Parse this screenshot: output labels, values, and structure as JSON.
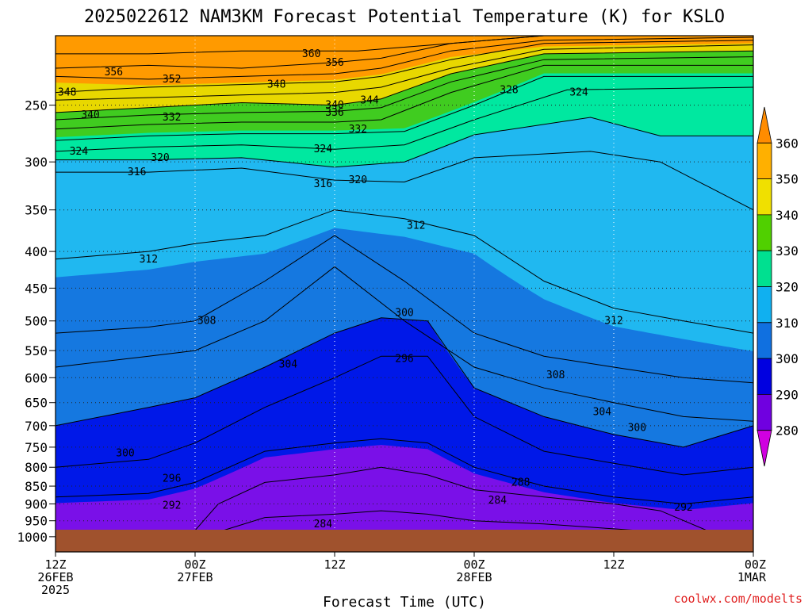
{
  "chart_data": {
    "type": "heatmap",
    "title": "2025022612 NAM3KM Forecast Potential Temperature (K) for KSLO",
    "xlabel": "Forecast Time (UTC)",
    "ylabel": "",
    "y_ticks": [
      250,
      300,
      350,
      400,
      450,
      500,
      550,
      600,
      650,
      700,
      750,
      800,
      850,
      900,
      950,
      1000
    ],
    "y_range": [
      200,
      1050
    ],
    "y_scale": "log",
    "x_ticks": [
      {
        "hour": 0,
        "lines": [
          "12Z",
          "26FEB",
          "2025"
        ]
      },
      {
        "hour": 12,
        "lines": [
          "00Z",
          "27FEB"
        ]
      },
      {
        "hour": 24,
        "lines": [
          "12Z"
        ]
      },
      {
        "hour": 36,
        "lines": [
          "00Z",
          "28FEB"
        ]
      },
      {
        "hour": 48,
        "lines": [
          "12Z"
        ]
      },
      {
        "hour": 60,
        "lines": [
          "00Z",
          "1MAR"
        ]
      }
    ],
    "x_range": [
      0,
      60
    ],
    "grid": true,
    "colorbar": {
      "ticks": [
        360,
        350,
        340,
        330,
        320,
        310,
        300,
        290,
        280
      ],
      "colors": [
        "#ff8c00",
        "#ffb000",
        "#f0e000",
        "#50d000",
        "#00e090",
        "#10b0f0",
        "#1070e0",
        "#0000e0",
        "#7000e0",
        "#d000e0"
      ]
    },
    "fill_colors": {
      "above_350": "#ff9a00",
      "340_350": "#e8d800",
      "330_340": "#40cc20",
      "320_330": "#00e8a0",
      "310_320": "#20b8f0",
      "300_310": "#1578e0",
      "290_300": "#0018e8",
      "280_290": "#7a10e8",
      "below_280": "#e010e8",
      "ground": "#a0522d"
    },
    "isentropes": [
      {
        "theta": 360,
        "p": [
          [
            0,
            212
          ],
          [
            8,
            212
          ],
          [
            16,
            210
          ],
          [
            26,
            210
          ],
          [
            34,
            205
          ],
          [
            42,
            200
          ],
          [
            60,
            200
          ]
        ]
      },
      {
        "theta": 356,
        "p": [
          [
            0,
            222
          ],
          [
            8,
            220
          ],
          [
            16,
            222
          ],
          [
            24,
            218
          ],
          [
            28,
            215
          ],
          [
            34,
            205
          ],
          [
            42,
            200
          ],
          [
            60,
            200
          ]
        ]
      },
      {
        "theta": 352,
        "p": [
          [
            0,
            228
          ],
          [
            8,
            230
          ],
          [
            16,
            228
          ],
          [
            24,
            226
          ],
          [
            28,
            222
          ],
          [
            34,
            210
          ],
          [
            42,
            203
          ],
          [
            60,
            201
          ]
        ]
      },
      {
        "theta": 348,
        "p": [
          [
            0,
            240
          ],
          [
            8,
            236
          ],
          [
            16,
            234
          ],
          [
            24,
            232
          ],
          [
            28,
            228
          ],
          [
            34,
            216
          ],
          [
            42,
            205
          ],
          [
            60,
            203
          ]
        ]
      },
      {
        "theta": 344,
        "p": [
          [
            0,
            246
          ],
          [
            8,
            244
          ],
          [
            16,
            242
          ],
          [
            24,
            240
          ],
          [
            28,
            236
          ],
          [
            34,
            222
          ],
          [
            42,
            209
          ],
          [
            60,
            206
          ]
        ]
      },
      {
        "theta": 340,
        "p": [
          [
            0,
            256
          ],
          [
            8,
            252
          ],
          [
            16,
            248
          ],
          [
            24,
            250
          ],
          [
            28,
            245
          ],
          [
            34,
            226
          ],
          [
            42,
            212
          ],
          [
            60,
            210
          ]
        ]
      },
      {
        "theta": 336,
        "p": [
          [
            0,
            262
          ],
          [
            8,
            258
          ],
          [
            16,
            256
          ],
          [
            24,
            255
          ],
          [
            28,
            252
          ],
          [
            34,
            232
          ],
          [
            42,
            216
          ],
          [
            60,
            214
          ]
        ]
      },
      {
        "theta": 332,
        "p": [
          [
            0,
            270
          ],
          [
            8,
            266
          ],
          [
            16,
            264
          ],
          [
            24,
            264
          ],
          [
            28,
            262
          ],
          [
            34,
            240
          ],
          [
            42,
            220
          ],
          [
            60,
            220
          ]
        ]
      },
      {
        "theta": 328,
        "p": [
          [
            0,
            280
          ],
          [
            8,
            276
          ],
          [
            16,
            274
          ],
          [
            24,
            274
          ],
          [
            30,
            272
          ],
          [
            36,
            250
          ],
          [
            42,
            228
          ],
          [
            60,
            228
          ]
        ]
      },
      {
        "theta": 324,
        "p": [
          [
            0,
            290
          ],
          [
            8,
            286
          ],
          [
            16,
            284
          ],
          [
            24,
            288
          ],
          [
            30,
            284
          ],
          [
            36,
            262
          ],
          [
            44,
            238
          ],
          [
            60,
            236
          ]
        ]
      },
      {
        "theta": 320,
        "p": [
          [
            0,
            298
          ],
          [
            8,
            298
          ],
          [
            16,
            296
          ],
          [
            24,
            305
          ],
          [
            30,
            300
          ],
          [
            36,
            275
          ],
          [
            46,
            260
          ],
          [
            52,
            276
          ],
          [
            60,
            276
          ]
        ]
      },
      {
        "theta": 316,
        "p": [
          [
            0,
            310
          ],
          [
            8,
            310
          ],
          [
            16,
            306
          ],
          [
            24,
            318
          ],
          [
            30,
            320
          ],
          [
            36,
            296
          ],
          [
            46,
            290
          ],
          [
            52,
            300
          ],
          [
            60,
            350
          ]
        ]
      },
      {
        "theta": 312,
        "p": [
          [
            0,
            410
          ],
          [
            8,
            400
          ],
          [
            12,
            390
          ],
          [
            18,
            380
          ],
          [
            24,
            350
          ],
          [
            30,
            360
          ],
          [
            36,
            380
          ],
          [
            42,
            440
          ],
          [
            48,
            480
          ],
          [
            54,
            500
          ],
          [
            60,
            520
          ]
        ]
      },
      {
        "theta": 308,
        "p": [
          [
            0,
            520
          ],
          [
            8,
            510
          ],
          [
            12,
            500
          ],
          [
            18,
            440
          ],
          [
            24,
            380
          ],
          [
            30,
            440
          ],
          [
            36,
            520
          ],
          [
            42,
            560
          ],
          [
            48,
            580
          ],
          [
            54,
            600
          ],
          [
            60,
            610
          ]
        ]
      },
      {
        "theta": 304,
        "p": [
          [
            0,
            580
          ],
          [
            8,
            560
          ],
          [
            12,
            550
          ],
          [
            18,
            500
          ],
          [
            24,
            420
          ],
          [
            30,
            500
          ],
          [
            36,
            580
          ],
          [
            42,
            620
          ],
          [
            48,
            650
          ],
          [
            54,
            680
          ],
          [
            60,
            690
          ]
        ]
      },
      {
        "theta": 300,
        "p": [
          [
            0,
            700
          ],
          [
            8,
            660
          ],
          [
            12,
            640
          ],
          [
            18,
            580
          ],
          [
            24,
            520
          ],
          [
            28,
            495
          ],
          [
            32,
            500
          ],
          [
            36,
            620
          ],
          [
            42,
            680
          ],
          [
            48,
            720
          ],
          [
            54,
            750
          ],
          [
            60,
            700
          ]
        ]
      },
      {
        "theta": 296,
        "p": [
          [
            0,
            800
          ],
          [
            8,
            780
          ],
          [
            12,
            740
          ],
          [
            18,
            660
          ],
          [
            24,
            600
          ],
          [
            28,
            560
          ],
          [
            32,
            560
          ],
          [
            36,
            680
          ],
          [
            42,
            760
          ],
          [
            48,
            790
          ],
          [
            54,
            820
          ],
          [
            60,
            800
          ]
        ]
      },
      {
        "theta": 292,
        "p": [
          [
            0,
            880
          ],
          [
            8,
            870
          ],
          [
            12,
            840
          ],
          [
            18,
            760
          ],
          [
            24,
            740
          ],
          [
            28,
            730
          ],
          [
            32,
            740
          ],
          [
            36,
            800
          ],
          [
            42,
            850
          ],
          [
            48,
            880
          ],
          [
            54,
            900
          ],
          [
            60,
            880
          ]
        ]
      },
      {
        "theta": 288,
        "p": [
          [
            0,
            980
          ],
          [
            12,
            980
          ],
          [
            14,
            900
          ],
          [
            18,
            840
          ],
          [
            24,
            820
          ],
          [
            28,
            800
          ],
          [
            32,
            820
          ],
          [
            36,
            860
          ],
          [
            42,
            880
          ],
          [
            48,
            900
          ],
          [
            52,
            920
          ],
          [
            56,
            980
          ]
        ]
      },
      {
        "theta": 284,
        "p": [
          [
            14,
            985
          ],
          [
            18,
            940
          ],
          [
            24,
            930
          ],
          [
            28,
            920
          ],
          [
            32,
            930
          ],
          [
            36,
            950
          ],
          [
            42,
            960
          ],
          [
            48,
            975
          ],
          [
            52,
            985
          ]
        ]
      }
    ],
    "contour_labels": [
      {
        "text": "360",
        "hour": 22,
        "p": 212
      },
      {
        "text": "356",
        "hour": 5,
        "p": 225
      },
      {
        "text": "356",
        "hour": 24,
        "p": 218
      },
      {
        "text": "352",
        "hour": 10,
        "p": 230
      },
      {
        "text": "348",
        "hour": 1,
        "p": 240
      },
      {
        "text": "348",
        "hour": 19,
        "p": 234
      },
      {
        "text": "344",
        "hour": 27,
        "p": 246
      },
      {
        "text": "340",
        "hour": 3,
        "p": 258
      },
      {
        "text": "340",
        "hour": 24,
        "p": 250
      },
      {
        "text": "336",
        "hour": 24,
        "p": 256
      },
      {
        "text": "332",
        "hour": 10,
        "p": 260
      },
      {
        "text": "332",
        "hour": 26,
        "p": 270
      },
      {
        "text": "328",
        "hour": 39,
        "p": 238
      },
      {
        "text": "324",
        "hour": 2,
        "p": 290
      },
      {
        "text": "324",
        "hour": 23,
        "p": 288
      },
      {
        "text": "324",
        "hour": 45,
        "p": 240
      },
      {
        "text": "320",
        "hour": 9,
        "p": 296
      },
      {
        "text": "320",
        "hour": 26,
        "p": 318
      },
      {
        "text": "316",
        "hour": 7,
        "p": 310
      },
      {
        "text": "316",
        "hour": 23,
        "p": 322
      },
      {
        "text": "312",
        "hour": 31,
        "p": 368
      },
      {
        "text": "312",
        "hour": 8,
        "p": 410
      },
      {
        "text": "312",
        "hour": 48,
        "p": 500
      },
      {
        "text": "308",
        "hour": 13,
        "p": 500
      },
      {
        "text": "308",
        "hour": 43,
        "p": 595
      },
      {
        "text": "304",
        "hour": 20,
        "p": 575
      },
      {
        "text": "304",
        "hour": 47,
        "p": 670
      },
      {
        "text": "300",
        "hour": 30,
        "p": 487
      },
      {
        "text": "300",
        "hour": 6,
        "p": 765
      },
      {
        "text": "300",
        "hour": 50,
        "p": 705
      },
      {
        "text": "296",
        "hour": 30,
        "p": 565
      },
      {
        "text": "296",
        "hour": 10,
        "p": 830
      },
      {
        "text": "292",
        "hour": 10,
        "p": 905
      },
      {
        "text": "292",
        "hour": 54,
        "p": 910
      },
      {
        "text": "288",
        "hour": 40,
        "p": 840
      },
      {
        "text": "284",
        "hour": 38,
        "p": 890
      },
      {
        "text": "284",
        "hour": 23,
        "p": 960
      }
    ]
  },
  "credit": {
    "text": "coolwx.com/modelts",
    "color": "#e02020"
  }
}
